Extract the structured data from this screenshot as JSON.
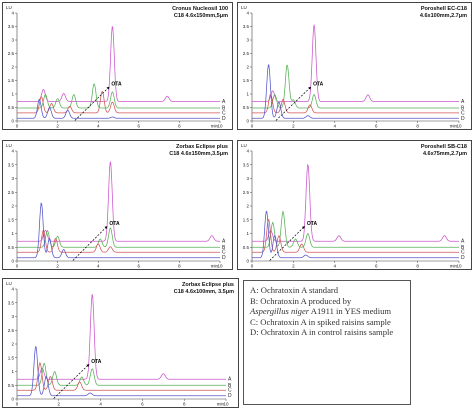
{
  "legend": {
    "A": "A: Ochratoxin A standard",
    "B_pre": "B: Ochratoxin A produced by",
    "B_italic": "Aspergillus niger",
    "B_post": " A1911 in YES medium",
    "C": "C: Ochratoxin A in spiked raisins sample",
    "D": "D: Ochratoxin A in control raisins sample"
  },
  "colors": {
    "A": "#cc55cc",
    "B": "#55b055",
    "C": "#d05555",
    "D": "#5555cc",
    "axis": "#444444",
    "arrow": "#000000"
  },
  "chart_data": [
    {
      "type": "line",
      "title_line1": "Cronus Nucleosil 100",
      "title_line2": "C18 4.6x150mm,5μm",
      "ylabel": "LU",
      "xunit": "min",
      "xlim": [
        0,
        10
      ],
      "ylim": [
        0,
        4
      ],
      "xticks": [
        "0",
        "2",
        "4",
        "6",
        "8",
        "10"
      ],
      "yticks": [
        "0",
        "0.5",
        "1",
        "1.5",
        "2",
        "2.5",
        "3",
        "3.5",
        "4"
      ],
      "annotation": "OTA",
      "trace_labels": [
        "A",
        "B",
        "C",
        "D"
      ],
      "series": [
        {
          "name": "A",
          "offset": 0.72,
          "peaks": [
            [
              1.3,
              0.45
            ],
            [
              2.3,
              0.3
            ],
            [
              4.7,
              2.8
            ],
            [
              7.4,
              0.2
            ]
          ]
        },
        {
          "name": "B",
          "offset": 0.48,
          "peaks": [
            [
              1.4,
              0.5
            ],
            [
              2.0,
              0.35
            ],
            [
              2.8,
              0.5
            ],
            [
              3.8,
              0.9
            ],
            [
              4.7,
              0.6
            ]
          ]
        },
        {
          "name": "C",
          "offset": 0.3,
          "peaks": [
            [
              1.2,
              0.6
            ],
            [
              1.7,
              0.35
            ],
            [
              2.6,
              0.25
            ],
            [
              4.2,
              0.8
            ],
            [
              4.7,
              0.4
            ]
          ]
        },
        {
          "name": "D",
          "offset": 0.1,
          "peaks": [
            [
              1.1,
              0.7
            ],
            [
              1.6,
              0.4
            ],
            [
              2.5,
              0.3
            ],
            [
              4.7,
              0.05
            ]
          ]
        }
      ]
    },
    {
      "type": "line",
      "title_line1": "Poroshell EC-C18",
      "title_line2": "4.6x100mm,2.7μm",
      "ylabel": "LU",
      "xunit": "min",
      "xlim": [
        0,
        10
      ],
      "ylim": [
        0,
        4
      ],
      "xticks": [
        "0",
        "2",
        "4",
        "6",
        "8",
        "10"
      ],
      "yticks": [
        "0",
        "0.5",
        "1",
        "1.5",
        "2",
        "2.5",
        "3",
        "3.5",
        "4"
      ],
      "annotation": "OTA",
      "trace_labels": [
        "A",
        "B",
        "C",
        "D"
      ],
      "series": [
        {
          "name": "A",
          "offset": 0.72,
          "peaks": [
            [
              1.0,
              0.4
            ],
            [
              3.0,
              2.85
            ],
            [
              5.6,
              0.25
            ]
          ]
        },
        {
          "name": "B",
          "offset": 0.48,
          "peaks": [
            [
              1.1,
              0.5
            ],
            [
              1.7,
              1.6
            ],
            [
              2.0,
              0.3
            ],
            [
              3.0,
              0.5
            ]
          ]
        },
        {
          "name": "C",
          "offset": 0.3,
          "peaks": [
            [
              0.9,
              0.7
            ],
            [
              1.5,
              0.5
            ],
            [
              2.8,
              0.3
            ]
          ]
        },
        {
          "name": "D",
          "offset": 0.1,
          "peaks": [
            [
              0.8,
              2.0
            ],
            [
              1.3,
              0.6
            ],
            [
              2.7,
              0.1
            ]
          ]
        }
      ]
    },
    {
      "type": "line",
      "title_line1": "Zorbax Eclipse plus",
      "title_line2": "C18 4.6x150mm,3.5μm",
      "ylabel": "LU",
      "xunit": "min",
      "xlim": [
        0,
        10
      ],
      "ylim": [
        0,
        4
      ],
      "xticks": [
        "0",
        "2",
        "4",
        "6",
        "8",
        "10"
      ],
      "yticks": [
        "0",
        "0.5",
        "1",
        "1.5",
        "2",
        "2.5",
        "3",
        "3.5",
        "4"
      ],
      "annotation": "OTA",
      "trace_labels": [
        "A",
        "B",
        "C",
        "D"
      ],
      "series": [
        {
          "name": "A",
          "offset": 0.72,
          "peaks": [
            [
              1.4,
              0.4
            ],
            [
              4.6,
              2.9
            ],
            [
              9.6,
              0.2
            ]
          ]
        },
        {
          "name": "B",
          "offset": 0.5,
          "peaks": [
            [
              1.5,
              0.6
            ],
            [
              2.0,
              0.4
            ],
            [
              4.1,
              0.3
            ],
            [
              4.6,
              0.7
            ]
          ]
        },
        {
          "name": "C",
          "offset": 0.32,
          "peaks": [
            [
              1.3,
              0.8
            ],
            [
              1.9,
              0.5
            ],
            [
              4.0,
              0.3
            ],
            [
              4.6,
              0.2
            ]
          ]
        },
        {
          "name": "D",
          "offset": 0.12,
          "peaks": [
            [
              1.2,
              2.0
            ],
            [
              1.6,
              0.7
            ],
            [
              2.3,
              0.3
            ]
          ]
        }
      ]
    },
    {
      "type": "line",
      "title_line1": "Poroshell SB-C18",
      "title_line2": "4.6x75mm,2.7μm",
      "ylabel": "LU",
      "xunit": "min",
      "xlim": [
        0,
        10
      ],
      "ylim": [
        0,
        4
      ],
      "xticks": [
        "0",
        "2",
        "4",
        "6",
        "8",
        "10"
      ],
      "yticks": [
        "0",
        "0.5",
        "1",
        "1.5",
        "2",
        "2.5",
        "3",
        "3.5",
        "4"
      ],
      "annotation": "OTA",
      "trace_labels": [
        "A",
        "B",
        "C",
        "D"
      ],
      "series": [
        {
          "name": "A",
          "offset": 0.72,
          "peaks": [
            [
              0.9,
              0.4
            ],
            [
              2.7,
              2.8
            ],
            [
              4.2,
              0.2
            ],
            [
              9.3,
              0.2
            ]
          ]
        },
        {
          "name": "B",
          "offset": 0.5,
          "peaks": [
            [
              1.0,
              0.9
            ],
            [
              1.5,
              1.3
            ],
            [
              2.1,
              0.3
            ],
            [
              2.7,
              0.5
            ]
          ]
        },
        {
          "name": "C",
          "offset": 0.32,
          "peaks": [
            [
              0.8,
              1.2
            ],
            [
              1.3,
              0.6
            ],
            [
              2.4,
              0.3
            ]
          ]
        },
        {
          "name": "D",
          "offset": 0.12,
          "peaks": [
            [
              0.7,
              1.7
            ],
            [
              1.1,
              0.8
            ],
            [
              2.6,
              0.1
            ]
          ]
        }
      ]
    },
    {
      "type": "line",
      "title_line1": "Zorbax Eclipse plus",
      "title_line2": "C18 4.6x100mm, 3.5μm",
      "ylabel": "LU",
      "xunit": "min",
      "xlim": [
        0,
        10
      ],
      "ylim": [
        0,
        4
      ],
      "xticks": [
        "0",
        "2",
        "4",
        "6",
        "8",
        "10"
      ],
      "yticks": [
        "0",
        "0.5",
        "1",
        "1.5",
        "2",
        "2.5",
        "3",
        "3.5",
        "4"
      ],
      "annotation": "OTA",
      "trace_labels": [
        "A",
        "B",
        "C",
        "D"
      ],
      "series": [
        {
          "name": "A",
          "offset": 0.72,
          "peaks": [
            [
              1.2,
              0.4
            ],
            [
              3.6,
              3.1
            ],
            [
              7.0,
              0.2
            ]
          ]
        },
        {
          "name": "B",
          "offset": 0.5,
          "peaks": [
            [
              1.3,
              0.8
            ],
            [
              1.8,
              0.5
            ],
            [
              3.1,
              0.3
            ],
            [
              3.6,
              0.6
            ]
          ]
        },
        {
          "name": "C",
          "offset": 0.32,
          "peaks": [
            [
              1.1,
              1.0
            ],
            [
              1.6,
              0.5
            ],
            [
              3.0,
              0.3
            ]
          ]
        },
        {
          "name": "D",
          "offset": 0.12,
          "peaks": [
            [
              0.9,
              1.8
            ],
            [
              1.4,
              0.7
            ],
            [
              3.5,
              0.1
            ]
          ]
        }
      ]
    }
  ]
}
